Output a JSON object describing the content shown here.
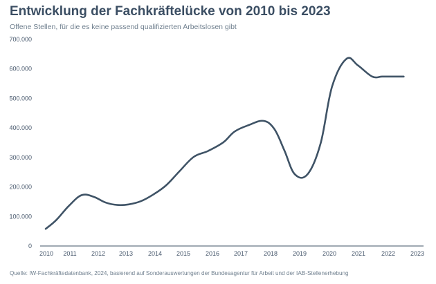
{
  "title": "Entwicklung der Fachkräftelücke von 2010 bis 2023",
  "subtitle": "Offene Stellen, für die es keine passend qualifizierten Arbeitslosen gibt",
  "source": "Quelle: IW-Fachkräftedatenbank, 2024, basierend auf Sonderauswertungen der Bundesagentur für Arbeit und der IAB-Stellenerhebung",
  "chart_data": {
    "type": "line",
    "title": "Entwicklung der Fachkräftelücke von 2010 bis 2023",
    "subtitle": "Offene Stellen, für die es keine passend qualifizierten Arbeitslosen gibt",
    "xlabel": "",
    "ylabel": "",
    "xlim": [
      2010,
      2023
    ],
    "ylim": [
      0,
      700000
    ],
    "grid": false,
    "line_color": "#3f5366",
    "x_tick_labels": [
      "2010",
      "2011",
      "2012",
      "2013",
      "2014",
      "2015",
      "2016",
      "2017",
      "2018",
      "2019",
      "2020",
      "2021",
      "2022",
      "2023"
    ],
    "y_tick_values": [
      0,
      100000,
      200000,
      300000,
      400000,
      500000,
      600000,
      700000
    ],
    "y_tick_labels": [
      "0",
      "100.000",
      "200.000",
      "300.000",
      "400.000",
      "500.000",
      "600.000",
      "700.000"
    ],
    "series": [
      {
        "x": [
          2010,
          2010.37,
          2010.8,
          2011.25,
          2011.67,
          2012.1,
          2012.5,
          2012.9,
          2013.33,
          2013.75,
          2014.2,
          2014.67,
          2015.17,
          2015.67,
          2016.2,
          2016.6,
          2017.1,
          2017.6,
          2017.98,
          2018.33,
          2018.7,
          2019.15,
          2019.6,
          2020.0,
          2020.5,
          2020.9,
          2021.4,
          2021.75,
          2022.1,
          2022.5
        ],
        "y": [
          58000,
          88000,
          135000,
          172000,
          167000,
          147000,
          139000,
          141000,
          152000,
          174000,
          205000,
          253000,
          302000,
          322000,
          351000,
          388000,
          410000,
          424000,
          397000,
          325000,
          243000,
          244000,
          348000,
          540000,
          634000,
          612000,
          574000,
          574000,
          574000,
          574000
        ]
      }
    ]
  }
}
